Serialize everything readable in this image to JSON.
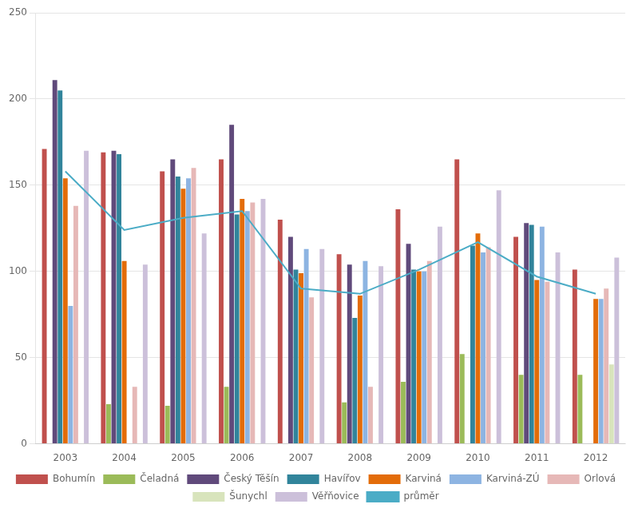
{
  "chart_data": {
    "type": "bar",
    "categories": [
      "2003",
      "2004",
      "2005",
      "2006",
      "2007",
      "2008",
      "2009",
      "2010",
      "2011",
      "2012"
    ],
    "series": [
      {
        "name": "Bohumín",
        "color": "#c0504d",
        "values": [
          171,
          169,
          158,
          165,
          130,
          110,
          136,
          165,
          120,
          101
        ]
      },
      {
        "name": "Čeladná",
        "color": "#9bbb59",
        "values": [
          0,
          23,
          22,
          33,
          0,
          24,
          36,
          52,
          40,
          40
        ]
      },
      {
        "name": "Český Těšín",
        "color": "#604a7b",
        "values": [
          211,
          170,
          165,
          185,
          120,
          104,
          116,
          0,
          128,
          0
        ]
      },
      {
        "name": "Havířov",
        "color": "#31849b",
        "values": [
          205,
          168,
          155,
          133,
          101,
          73,
          101,
          115,
          127,
          0
        ]
      },
      {
        "name": "Karviná",
        "color": "#e36c09",
        "values": [
          154,
          106,
          148,
          142,
          99,
          86,
          100,
          122,
          95,
          84
        ]
      },
      {
        "name": "Karviná-ZÚ",
        "color": "#8db4e2",
        "values": [
          80,
          0,
          154,
          135,
          113,
          106,
          100,
          111,
          126,
          84
        ]
      },
      {
        "name": "Orlová",
        "color": "#e6b8b7",
        "values": [
          138,
          33,
          160,
          140,
          85,
          33,
          106,
          114,
          94,
          90
        ]
      },
      {
        "name": "Šunychl",
        "color": "#d8e4bc",
        "values": [
          0,
          0,
          0,
          0,
          0,
          0,
          0,
          0,
          0,
          46
        ]
      },
      {
        "name": "Věřňovice",
        "color": "#ccc0da",
        "values": [
          170,
          104,
          122,
          142,
          113,
          103,
          126,
          147,
          111,
          108
        ]
      },
      {
        "name": "průměr",
        "type": "line",
        "color": "#4bacc6",
        "values": [
          158,
          124,
          131,
          135,
          90,
          87,
          101,
          117,
          97,
          87
        ]
      }
    ],
    "ylim": [
      0,
      250
    ],
    "yticks": [
      0,
      50,
      100,
      150,
      200,
      250
    ],
    "grid": true,
    "legend": "bottom"
  }
}
